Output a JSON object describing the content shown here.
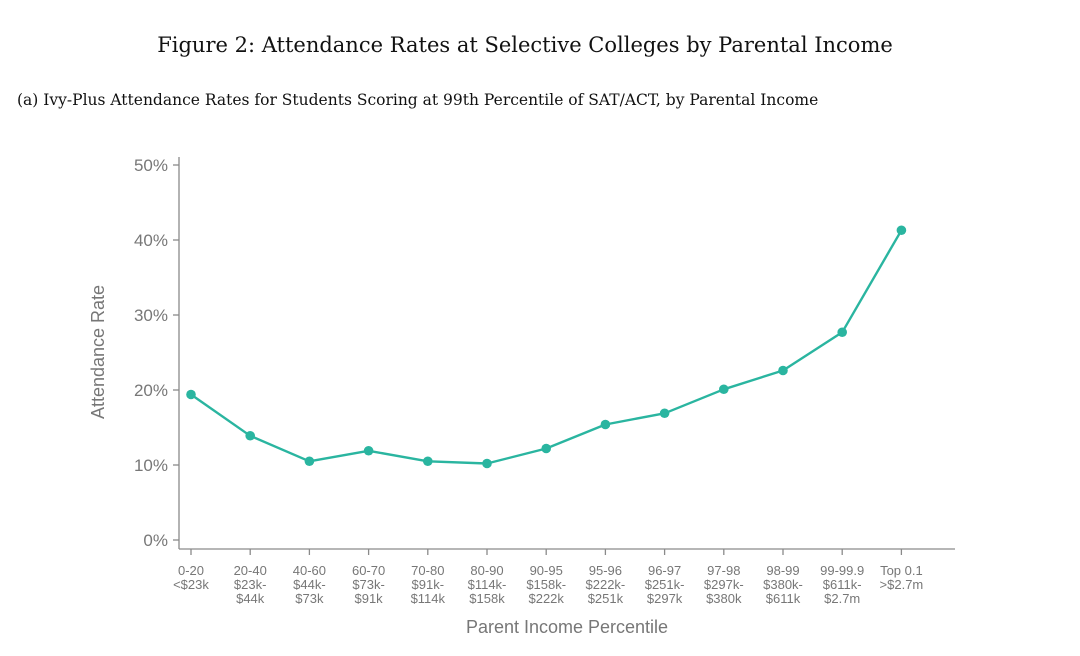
{
  "figure": {
    "title": "Figure 2: Attendance Rates at Selective Colleges by Parental Income",
    "subtitle": "(a) Ivy-Plus Attendance Rates for Students Scoring at 99th Percentile of SAT/ACT, by Parental Income"
  },
  "chart_data": {
    "type": "line",
    "title": "",
    "xlabel": "Parent Income Percentile",
    "ylabel": "Attendance Rate",
    "ylim": [
      0,
      50
    ],
    "yticks": [
      "0%",
      "10%",
      "20%",
      "30%",
      "40%",
      "50%"
    ],
    "grid": false,
    "line_color": "#2ab5a0",
    "categories": [
      {
        "pct": "0-20",
        "inc1": "<$23k",
        "inc2": ""
      },
      {
        "pct": "20-40",
        "inc1": "$23k-",
        "inc2": "$44k"
      },
      {
        "pct": "40-60",
        "inc1": "$44k-",
        "inc2": "$73k"
      },
      {
        "pct": "60-70",
        "inc1": "$73k-",
        "inc2": "$91k"
      },
      {
        "pct": "70-80",
        "inc1": "$91k-",
        "inc2": "$114k"
      },
      {
        "pct": "80-90",
        "inc1": "$114k-",
        "inc2": "$158k"
      },
      {
        "pct": "90-95",
        "inc1": "$158k-",
        "inc2": "$222k"
      },
      {
        "pct": "95-96",
        "inc1": "$222k-",
        "inc2": "$251k"
      },
      {
        "pct": "96-97",
        "inc1": "$251k-",
        "inc2": "$297k"
      },
      {
        "pct": "97-98",
        "inc1": "$297k-",
        "inc2": "$380k"
      },
      {
        "pct": "98-99",
        "inc1": "$380k-",
        "inc2": "$611k"
      },
      {
        "pct": "99-99.9",
        "inc1": "$611k-",
        "inc2": "$2.7m"
      },
      {
        "pct": "Top 0.1",
        "inc1": ">$2.7m",
        "inc2": ""
      }
    ],
    "values": [
      19.4,
      13.9,
      10.5,
      11.9,
      10.5,
      10.2,
      12.2,
      15.4,
      16.9,
      20.1,
      22.6,
      27.7,
      41.3
    ]
  }
}
